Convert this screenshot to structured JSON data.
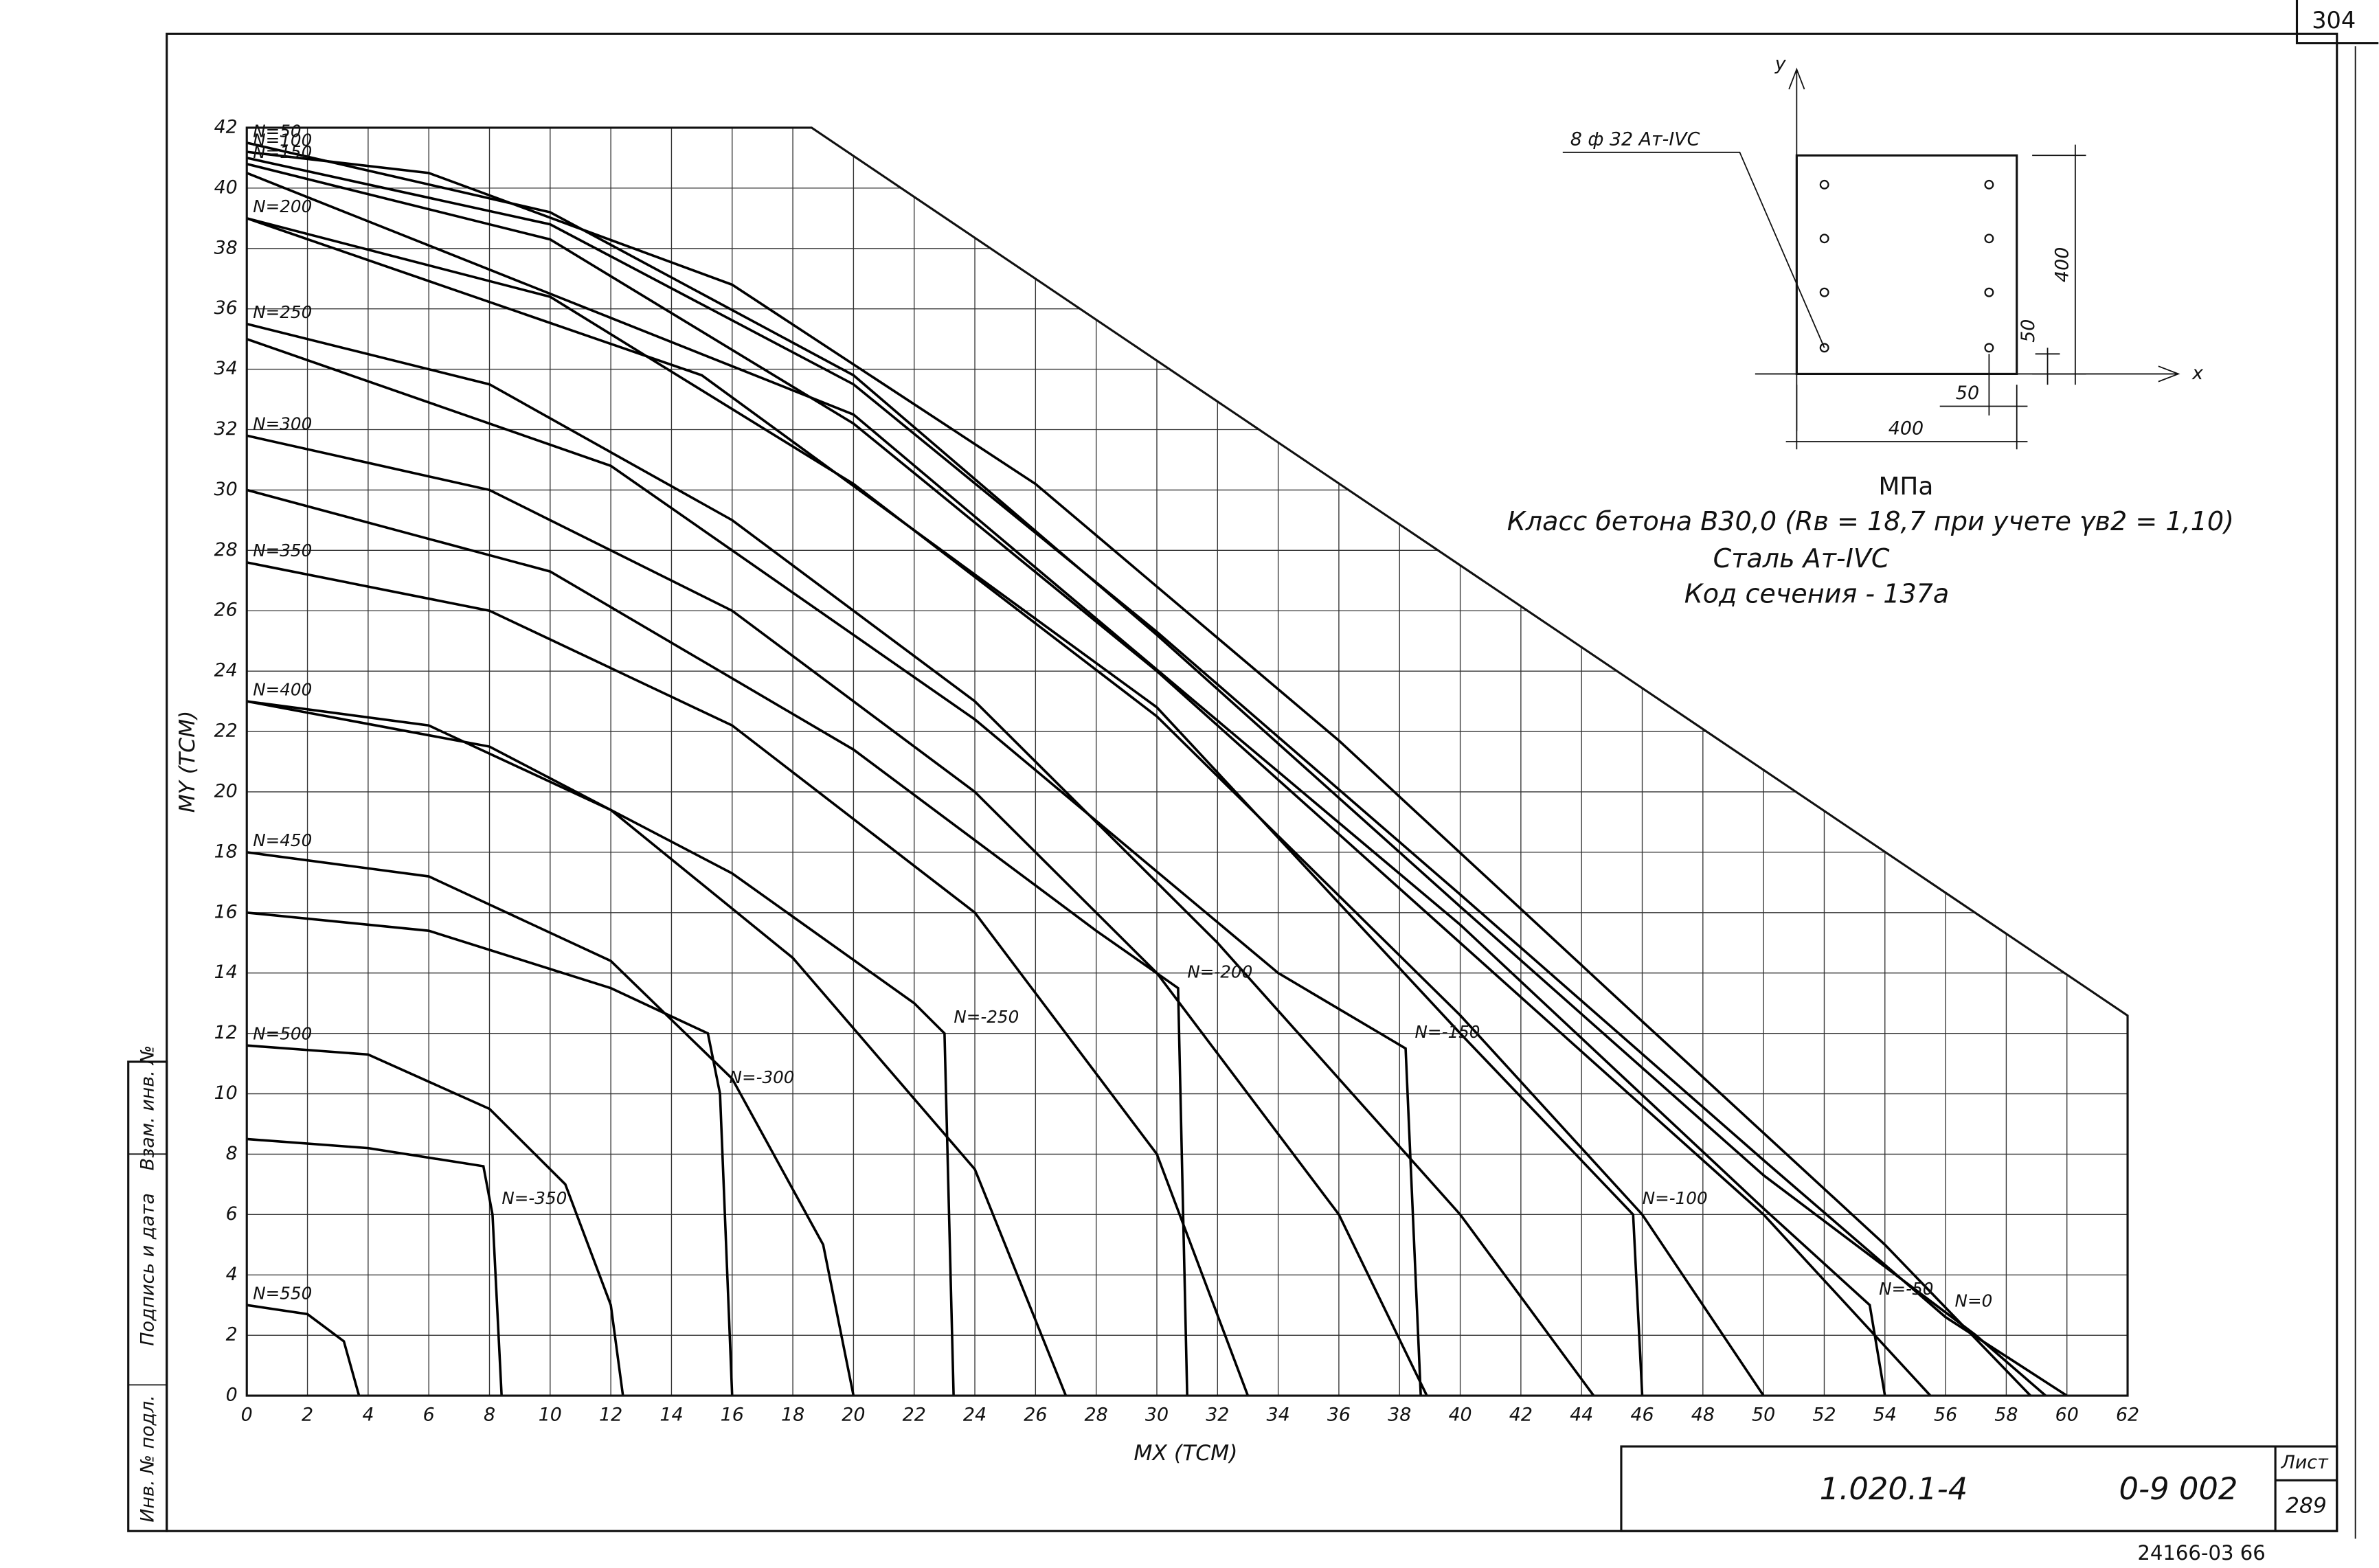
{
  "chart_data": {
    "type": "line",
    "color": "#000000",
    "x_label": "MX (TCM)",
    "y_label": "MY (TCM)",
    "xlim": [
      0,
      62
    ],
    "ylim": [
      0,
      42
    ],
    "xticks": [
      0,
      2,
      4,
      6,
      8,
      10,
      12,
      14,
      16,
      18,
      20,
      22,
      24,
      26,
      28,
      30,
      32,
      34,
      36,
      38,
      40,
      42,
      44,
      46,
      48,
      50,
      52,
      54,
      56,
      58,
      60,
      62
    ],
    "yticks": [
      0,
      2,
      4,
      6,
      8,
      10,
      12,
      14,
      16,
      18,
      20,
      22,
      24,
      26,
      28,
      30,
      32,
      34,
      36,
      38,
      40,
      42
    ],
    "grid": true,
    "series": [
      {
        "name": "N=50",
        "x": [
          0,
          10,
          20,
          30,
          40,
          50,
          57,
          59.3
        ],
        "values": [
          41.5,
          39.2,
          33.8,
          25.2,
          16.2,
          7.3,
          2,
          0
        ]
      },
      {
        "name": "N=100",
        "x": [
          0,
          6,
          16,
          26,
          36,
          46,
          54,
          58.8
        ],
        "values": [
          41.2,
          40.5,
          36.8,
          30.2,
          21.7,
          12.4,
          5,
          0
        ]
      },
      {
        "name": "N=150",
        "x": [
          0,
          10,
          20,
          30,
          40,
          50,
          55.5
        ],
        "values": [
          40.8,
          38.3,
          32.2,
          24,
          15,
          6,
          0
        ]
      },
      {
        "name": "N=200",
        "x": [
          0,
          10,
          20,
          30,
          40,
          46,
          50
        ],
        "values": [
          39,
          36.4,
          30.2,
          22.5,
          12.6,
          6,
          0
        ]
      },
      {
        "name": "N=250",
        "x": [
          0,
          8,
          16,
          24,
          32,
          40,
          44.4
        ],
        "values": [
          35.5,
          33.5,
          29,
          23,
          15,
          6,
          0
        ]
      },
      {
        "name": "N=300",
        "x": [
          0,
          8,
          16,
          24,
          30,
          36,
          38.9
        ],
        "values": [
          31.8,
          30,
          26,
          20,
          14,
          6,
          0
        ]
      },
      {
        "name": "N=350",
        "x": [
          0,
          8,
          16,
          24,
          30,
          33
        ],
        "values": [
          27.6,
          26,
          22.2,
          16,
          8,
          0
        ]
      },
      {
        "name": "N=400",
        "x": [
          0,
          6,
          12,
          18,
          24,
          27
        ],
        "values": [
          23,
          22.2,
          19.4,
          14.5,
          7.5,
          0
        ]
      },
      {
        "name": "N=450",
        "x": [
          0,
          6,
          12,
          16,
          19,
          20
        ],
        "values": [
          18,
          17.2,
          14.4,
          10.5,
          5,
          0
        ]
      },
      {
        "name": "N=500",
        "x": [
          0,
          4,
          8,
          10.5,
          12,
          12.4
        ],
        "values": [
          11.6,
          11.3,
          9.5,
          7,
          3,
          0
        ]
      },
      {
        "name": "N=550",
        "x": [
          0,
          2,
          3.2,
          3.7
        ],
        "values": [
          3,
          2.7,
          1.8,
          0
        ]
      },
      {
        "name": "N=0",
        "x": [
          0,
          10,
          20,
          30,
          40,
          50,
          56,
          60
        ],
        "values": [
          41,
          38.8,
          33.5,
          25.3,
          16.6,
          7.8,
          2.6,
          0
        ]
      },
      {
        "name": "N=-50",
        "x": [
          0,
          20,
          40,
          50,
          53.5,
          54
        ],
        "values": [
          40.5,
          32.5,
          15.6,
          6.2,
          3,
          0
        ]
      },
      {
        "name": "N=-100",
        "x": [
          0,
          15,
          30,
          40,
          45.7,
          46
        ],
        "values": [
          39,
          33.8,
          22.8,
          12,
          6,
          0
        ]
      },
      {
        "name": "N=-150",
        "x": [
          0,
          12,
          24,
          34,
          38.2,
          38.7
        ],
        "values": [
          35,
          30.8,
          22.4,
          14,
          11.5,
          0
        ]
      },
      {
        "name": "N=-200",
        "x": [
          0,
          10,
          20,
          28,
          30.7,
          31
        ],
        "values": [
          30,
          27.3,
          21.4,
          15.4,
          13.5,
          0
        ]
      },
      {
        "name": "N=-250",
        "x": [
          0,
          8,
          16,
          22,
          23,
          23.3
        ],
        "values": [
          23,
          21.5,
          17.3,
          13,
          12,
          0
        ]
      },
      {
        "name": "N=-300",
        "x": [
          0,
          6,
          12,
          15.2,
          15.6,
          16
        ],
        "values": [
          16,
          15.4,
          13.5,
          12,
          10,
          0
        ]
      },
      {
        "name": "N=-350",
        "x": [
          0,
          4,
          7.8,
          8.1,
          8.4
        ],
        "values": [
          8.5,
          8.2,
          7.6,
          6,
          0
        ]
      }
    ]
  },
  "notes": {
    "unit": "МПа",
    "concrete": "Класс бетона В30,0 (Rв = 18,7  при учете γв2 = 1,10)",
    "steel": "Сталь Ат-IVС",
    "section_code": "Код сечения - 137а"
  },
  "section": {
    "rebar": "8 ф 32 Ат-IVС",
    "width": "400",
    "height": "400",
    "cover_x": "50",
    "cover_y": "50",
    "axis_x": "x",
    "axis_y": "y"
  },
  "title_block": {
    "page": "304",
    "sheet_label": "Лист",
    "sheet": "289",
    "series_code": "1.020.1-4",
    "drawing": "0-9 002",
    "archive": "24166-03 66"
  },
  "stamps": [
    "Инв. № подл.",
    "Подпись и дата",
    "Взам. инв. №"
  ]
}
